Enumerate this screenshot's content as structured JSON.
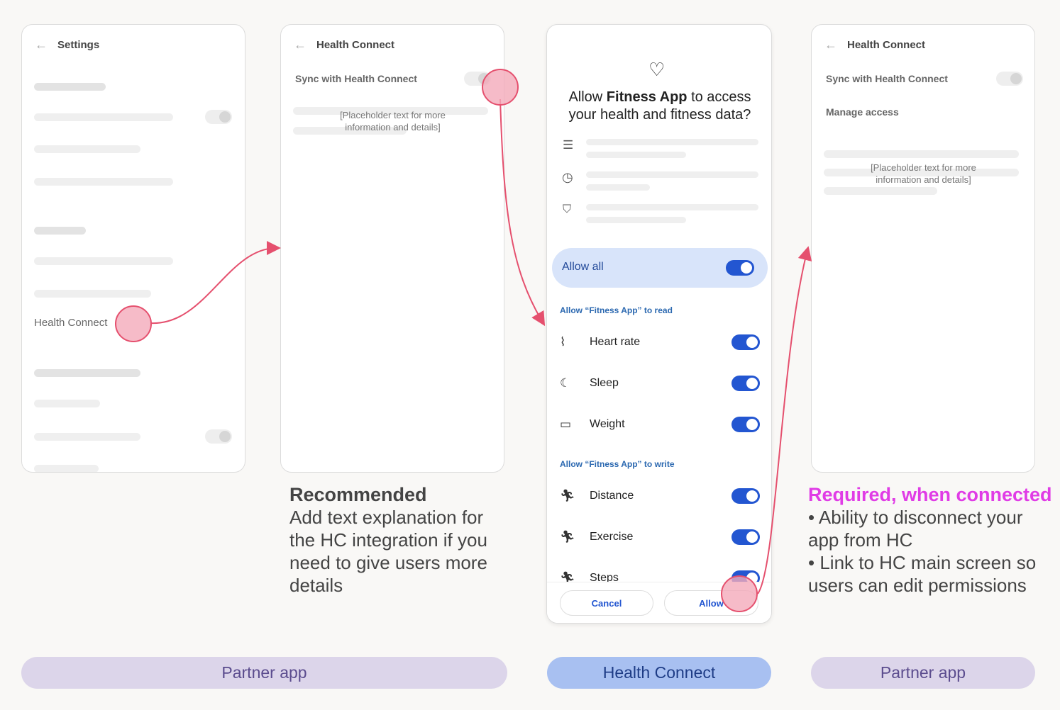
{
  "screen1": {
    "title": "Settings",
    "item": "Health Connect"
  },
  "screen2": {
    "title": "Health Connect",
    "sync": "Sync with Health Connect",
    "placeholder": "[Placeholder text for more information and details]"
  },
  "screen3": {
    "title_pre": "Allow ",
    "title_app": "Fitness App",
    "title_post": " to access your health and fitness data?",
    "allow_all": "Allow all",
    "allow_all_on": true,
    "read_heading": "Allow “Fitness App” to read",
    "read": [
      {
        "label": "Heart rate",
        "icon": "heart-rate-icon",
        "on": true
      },
      {
        "label": "Sleep",
        "icon": "sleep-icon",
        "on": true
      },
      {
        "label": "Weight",
        "icon": "weight-icon",
        "on": true
      }
    ],
    "write_heading": "Allow “Fitness App” to write",
    "write": [
      {
        "label": "Distance",
        "icon": "running-icon",
        "on": true
      },
      {
        "label": "Exercise",
        "icon": "running-icon",
        "on": true
      },
      {
        "label": "Steps",
        "icon": "running-icon",
        "on": true
      }
    ],
    "cancel": "Cancel",
    "allow": "Allow"
  },
  "screen4": {
    "title": "Health Connect",
    "sync": "Sync with Health Connect",
    "manage": "Manage access",
    "placeholder": "[Placeholder text for more information and details]"
  },
  "notes": {
    "recommended_title": "Recommended",
    "recommended_body": "Add text explanation for the HC integration if you need to give users more details",
    "required_title": "Required, when connected",
    "required_1": "• Ability to disconnect your app from HC",
    "required_2": "• Link to HC main screen so users can edit permissions"
  },
  "labels": {
    "left": "Partner app",
    "middle": "Health Connect",
    "right": "Partner app"
  },
  "colors": {
    "accent": "#2356d1",
    "tap": "#e5506e",
    "required": "#e03ce6",
    "partner_pill": "#dcd5ea",
    "hc_pill": "#a8c0f1"
  }
}
